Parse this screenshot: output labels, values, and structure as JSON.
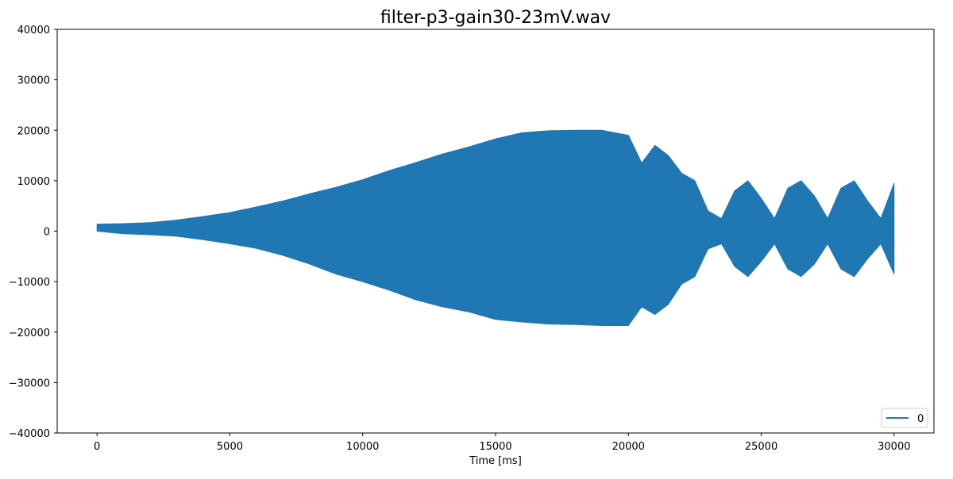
{
  "chart_data": {
    "type": "line",
    "title": "filter-p3-gain30-23mV.wav",
    "xlabel": "Time [ms]",
    "ylabel": "",
    "xlim": [
      -1500,
      31500
    ],
    "ylim": [
      -40000,
      40000
    ],
    "x_ticks": [
      0,
      5000,
      10000,
      15000,
      20000,
      25000,
      30000
    ],
    "y_ticks": [
      -40000,
      -30000,
      -20000,
      -10000,
      0,
      10000,
      20000,
      30000,
      40000
    ],
    "grid": false,
    "legend_position": "lower-right",
    "series": [
      {
        "name": "0",
        "color": "#1f77b4",
        "envelope": {
          "x": [
            0,
            1000,
            2000,
            3000,
            4000,
            5000,
            6000,
            7000,
            8000,
            9000,
            10000,
            11000,
            12000,
            13000,
            14000,
            15000,
            16000,
            17000,
            18000,
            19000,
            20000,
            20500,
            21000,
            21500,
            22000,
            22500,
            23000,
            23500,
            24000,
            24500,
            25000,
            25500,
            26000,
            26500,
            27000,
            27500,
            28000,
            28500,
            29000,
            29500,
            30000
          ],
          "upper": [
            1400,
            1500,
            1700,
            2200,
            2900,
            3700,
            4800,
            6000,
            7400,
            8700,
            10200,
            12000,
            13600,
            15300,
            16700,
            18300,
            19500,
            19900,
            20000,
            20000,
            19000,
            13500,
            17000,
            15000,
            11500,
            10000,
            4000,
            2500,
            8000,
            10000,
            6500,
            2500,
            8500,
            10000,
            7000,
            2500,
            8500,
            10000,
            6000,
            2500,
            9500
          ],
          "lower": [
            0,
            -500,
            -700,
            -1000,
            -1700,
            -2500,
            -3400,
            -4800,
            -6500,
            -8500,
            -10000,
            -11700,
            -13600,
            -15000,
            -16000,
            -17500,
            -18000,
            -18400,
            -18500,
            -18700,
            -18700,
            -15000,
            -16500,
            -14500,
            -10500,
            -9000,
            -3500,
            -2500,
            -7000,
            -9000,
            -6000,
            -2500,
            -7500,
            -9000,
            -6500,
            -2500,
            -7500,
            -9000,
            -5500,
            -2500,
            -8500
          ]
        }
      }
    ]
  }
}
